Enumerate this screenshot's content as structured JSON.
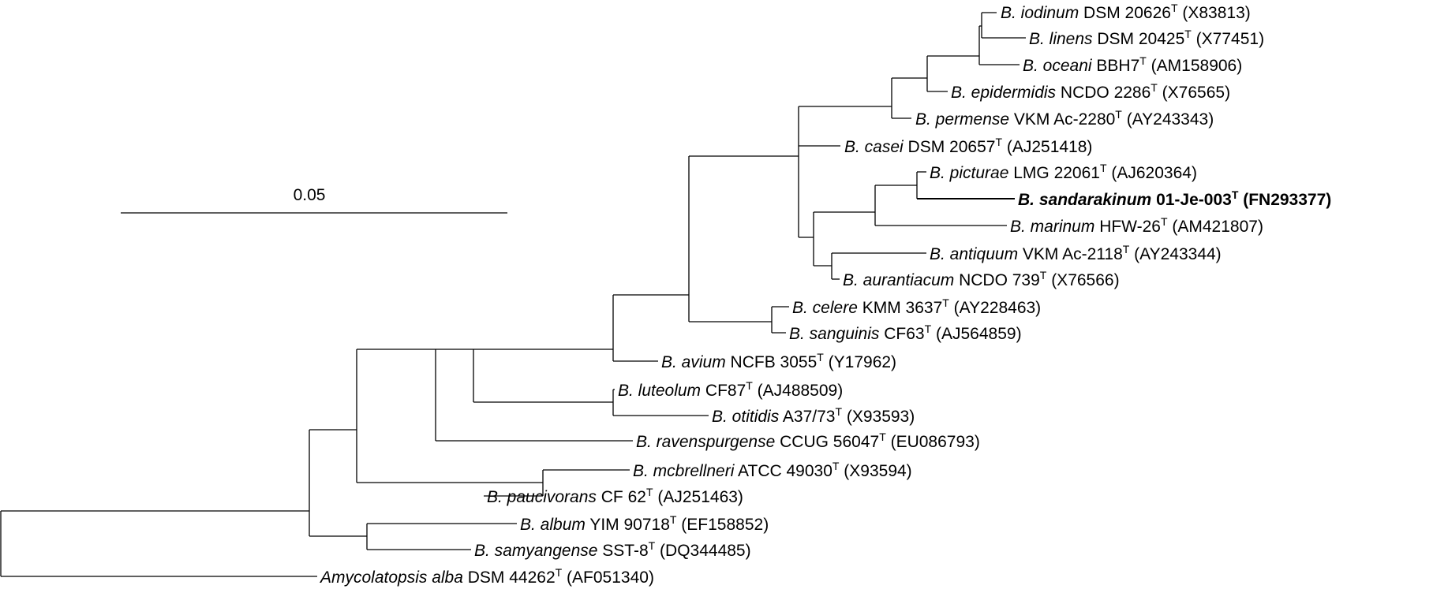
{
  "scale_bar": {
    "label": "0.05"
  },
  "taxa": [
    {
      "id": "iodinum",
      "genus": "B.",
      "species": "iodinum",
      "strain": "DSM 20626",
      "accession": "(X83813)",
      "type_strain": true,
      "highlight": false
    },
    {
      "id": "linens",
      "genus": "B.",
      "species": "linens",
      "strain": "DSM 20425",
      "accession": "(X77451)",
      "type_strain": true,
      "highlight": false
    },
    {
      "id": "oceani",
      "genus": "B.",
      "species": "oceani",
      "strain": "BBH7",
      "accession": "(AM158906)",
      "type_strain": true,
      "highlight": false
    },
    {
      "id": "epidermidis",
      "genus": "B.",
      "species": "epidermidis",
      "strain": "NCDO 2286",
      "accession": "(X76565)",
      "type_strain": true,
      "highlight": false
    },
    {
      "id": "permense",
      "genus": "B.",
      "species": "permense",
      "strain": "VKM Ac-2280",
      "accession": "(AY243343)",
      "type_strain": true,
      "highlight": false
    },
    {
      "id": "casei",
      "genus": "B.",
      "species": "casei",
      "strain": "DSM 20657",
      "accession": "(AJ251418)",
      "type_strain": true,
      "highlight": false
    },
    {
      "id": "picturae",
      "genus": "B.",
      "species": "picturae",
      "strain": "LMG 22061",
      "accession": "(AJ620364)",
      "type_strain": true,
      "highlight": false
    },
    {
      "id": "sandarakinum",
      "genus": "B.",
      "species": "sandarakinum",
      "strain": "01-Je-003",
      "accession": "(FN293377)",
      "type_strain": true,
      "highlight": true
    },
    {
      "id": "marinum",
      "genus": "B.",
      "species": "marinum",
      "strain": "HFW-26",
      "accession": "(AM421807)",
      "type_strain": true,
      "highlight": false
    },
    {
      "id": "antiquum",
      "genus": "B.",
      "species": "antiquum",
      "strain": "VKM Ac-2118",
      "accession": "(AY243344)",
      "type_strain": true,
      "highlight": false
    },
    {
      "id": "aurantiacum",
      "genus": "B.",
      "species": "aurantiacum",
      "strain": "NCDO 739",
      "accession": "(X76566)",
      "type_strain": true,
      "highlight": false
    },
    {
      "id": "celere",
      "genus": "B.",
      "species": "celere",
      "strain": "KMM 3637",
      "accession": "(AY228463)",
      "type_strain": true,
      "highlight": false
    },
    {
      "id": "sanguinis",
      "genus": "B.",
      "species": "sanguinis",
      "strain": "CF63",
      "accession": "(AJ564859)",
      "type_strain": true,
      "highlight": false
    },
    {
      "id": "avium",
      "genus": "B.",
      "species": "avium",
      "strain": "NCFB 3055",
      "accession": "(Y17962)",
      "type_strain": true,
      "highlight": false
    },
    {
      "id": "luteolum",
      "genus": "B.",
      "species": "luteolum",
      "strain": "CF87",
      "accession": "(AJ488509)",
      "type_strain": true,
      "highlight": false
    },
    {
      "id": "otitidis",
      "genus": "B.",
      "species": "otitidis",
      "strain": "A37/73",
      "accession": "(X93593)",
      "type_strain": true,
      "highlight": false
    },
    {
      "id": "ravenspurgense",
      "genus": "B.",
      "species": "ravenspurgense",
      "strain": "CCUG 56047",
      "accession": "(EU086793)",
      "type_strain": true,
      "highlight": false
    },
    {
      "id": "mcbrellneri",
      "genus": "B.",
      "species": "mcbrellneri",
      "strain": "ATCC 49030",
      "accession": "(X93594)",
      "type_strain": true,
      "highlight": false
    },
    {
      "id": "paucivorans",
      "genus": "B.",
      "species": "paucivorans",
      "strain": "CF 62",
      "accession": "(AJ251463)",
      "type_strain": true,
      "highlight": false
    },
    {
      "id": "album",
      "genus": "B.",
      "species": "album",
      "strain": "YIM 90718",
      "accession": "(EF158852)",
      "type_strain": true,
      "highlight": false
    },
    {
      "id": "samyangense",
      "genus": "B.",
      "species": "samyangense",
      "strain": "SST-8",
      "accession": "(DQ344485)",
      "type_strain": true,
      "highlight": false
    },
    {
      "id": "amycolatopsis",
      "genus": "Amycolatopsis",
      "species": "alba",
      "strain": "DSM 44262",
      "accession": "(AF051340)",
      "type_strain": true,
      "highlight": false
    }
  ]
}
